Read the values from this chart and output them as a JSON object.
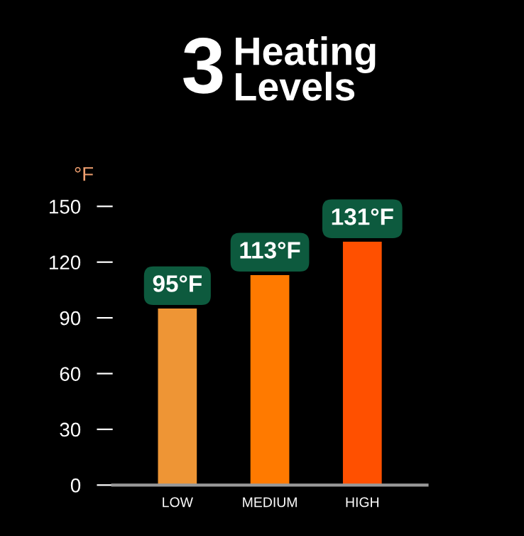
{
  "chart_data": {
    "type": "bar",
    "title": "3 Heating Levels",
    "ylabel": "°F",
    "categories": [
      "LOW",
      "MEDIUM",
      "HIGH"
    ],
    "values": [
      95,
      113,
      131
    ],
    "colors": [
      "#ee9535",
      "#ff7a00",
      "#ff5000"
    ],
    "value_labels": [
      "95°F",
      "113°F",
      "131°F"
    ],
    "ylim": [
      0,
      150
    ],
    "yticks": [
      0,
      30,
      60,
      90,
      120,
      150
    ],
    "grid": false,
    "legend": false
  }
}
